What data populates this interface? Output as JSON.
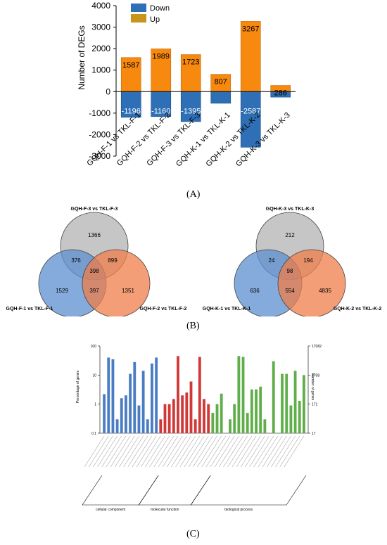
{
  "chart_data": [
    {
      "type": "bar",
      "panel": "(A)",
      "ylabel": "Number of DEGs",
      "ylim": [
        -3000,
        4000
      ],
      "yticks": [
        4000,
        3000,
        2000,
        1000,
        0,
        -1000,
        -2000,
        -3000
      ],
      "categories": [
        "GQH-F-1 vs TKL-F-1",
        "GQH-F-2 vs TKL-F-2",
        "GQH-F-3 vs TKL-F-3",
        "GQH-K-1 vs TKL-K-1",
        "GQH-K-2 vs TKL-K-2",
        "GQH-K-3 vs TKL-K-3"
      ],
      "series": [
        {
          "name": "Down",
          "color": "#2e6fb5",
          "values": [
            -1196,
            -1160,
            -1395,
            -543,
            -2587,
            -257
          ],
          "labels": [
            "-1196",
            "-1160",
            "-1395",
            "-543",
            "-2587",
            "-257"
          ]
        },
        {
          "name": "Up",
          "color": "#f7890f",
          "values": [
            1587,
            1989,
            1723,
            807,
            3267,
            286
          ],
          "labels": [
            "1587",
            "1989",
            "1723",
            "807",
            "3267",
            "286"
          ]
        }
      ]
    },
    {
      "type": "venn",
      "panel": "(B)",
      "sets": [
        "GQH-F-3 vs TKL-F-3",
        "GQH-F-1 vs TKL-F-1",
        "GQH-F-2 vs TKL-F-2"
      ],
      "regions": {
        "top_only": "1366",
        "left_only": "1529",
        "right_only": "1351",
        "top_left": "376",
        "top_right": "899",
        "left_right": "397",
        "all": "398"
      }
    },
    {
      "type": "venn",
      "panel": "(B)",
      "sets": [
        "GQH-K-3 vs TKL-K-3",
        "GQH-K-1 vs TKL-K-1",
        "GQH-K-2 vs TKL-K-2"
      ],
      "regions": {
        "top_only": "212",
        "left_only": "636",
        "right_only": "4835",
        "top_left": "24",
        "top_right": "194",
        "left_right": "554",
        "all": "98"
      }
    },
    {
      "type": "bar",
      "panel": "(C)",
      "ylabel": "Percentage of genes",
      "y2label": "Number of genes",
      "scale": "log",
      "yticks": [
        "0.1",
        "1",
        "10",
        "100"
      ],
      "y2ticks": [
        "17",
        "171",
        "1708",
        "17082"
      ],
      "groups": [
        {
          "name": "cellular component",
          "color": "#4a7cc4",
          "values": [
            2.2,
            40,
            35,
            0.3,
            1.6,
            2,
            11,
            28,
            0.9,
            14,
            0.3,
            25,
            40
          ]
        },
        {
          "name": "molecular function",
          "color": "#d13838",
          "values": [
            0.3,
            1,
            1,
            1.5,
            45,
            2,
            2.5,
            6,
            0.3,
            42,
            1.5,
            1
          ]
        },
        {
          "name": "biological process",
          "color": "#5fae4a",
          "values": [
            0.5,
            1,
            2.3,
            0.1,
            0.3,
            1,
            45,
            42,
            0.5,
            3.2,
            3.2,
            4,
            0.3,
            0.1,
            30,
            0.1,
            11,
            11,
            0.9,
            14,
            1.3,
            10
          ]
        }
      ]
    }
  ],
  "panel_labels": {
    "a": "(A)",
    "b": "(B)",
    "c": "(C)"
  }
}
